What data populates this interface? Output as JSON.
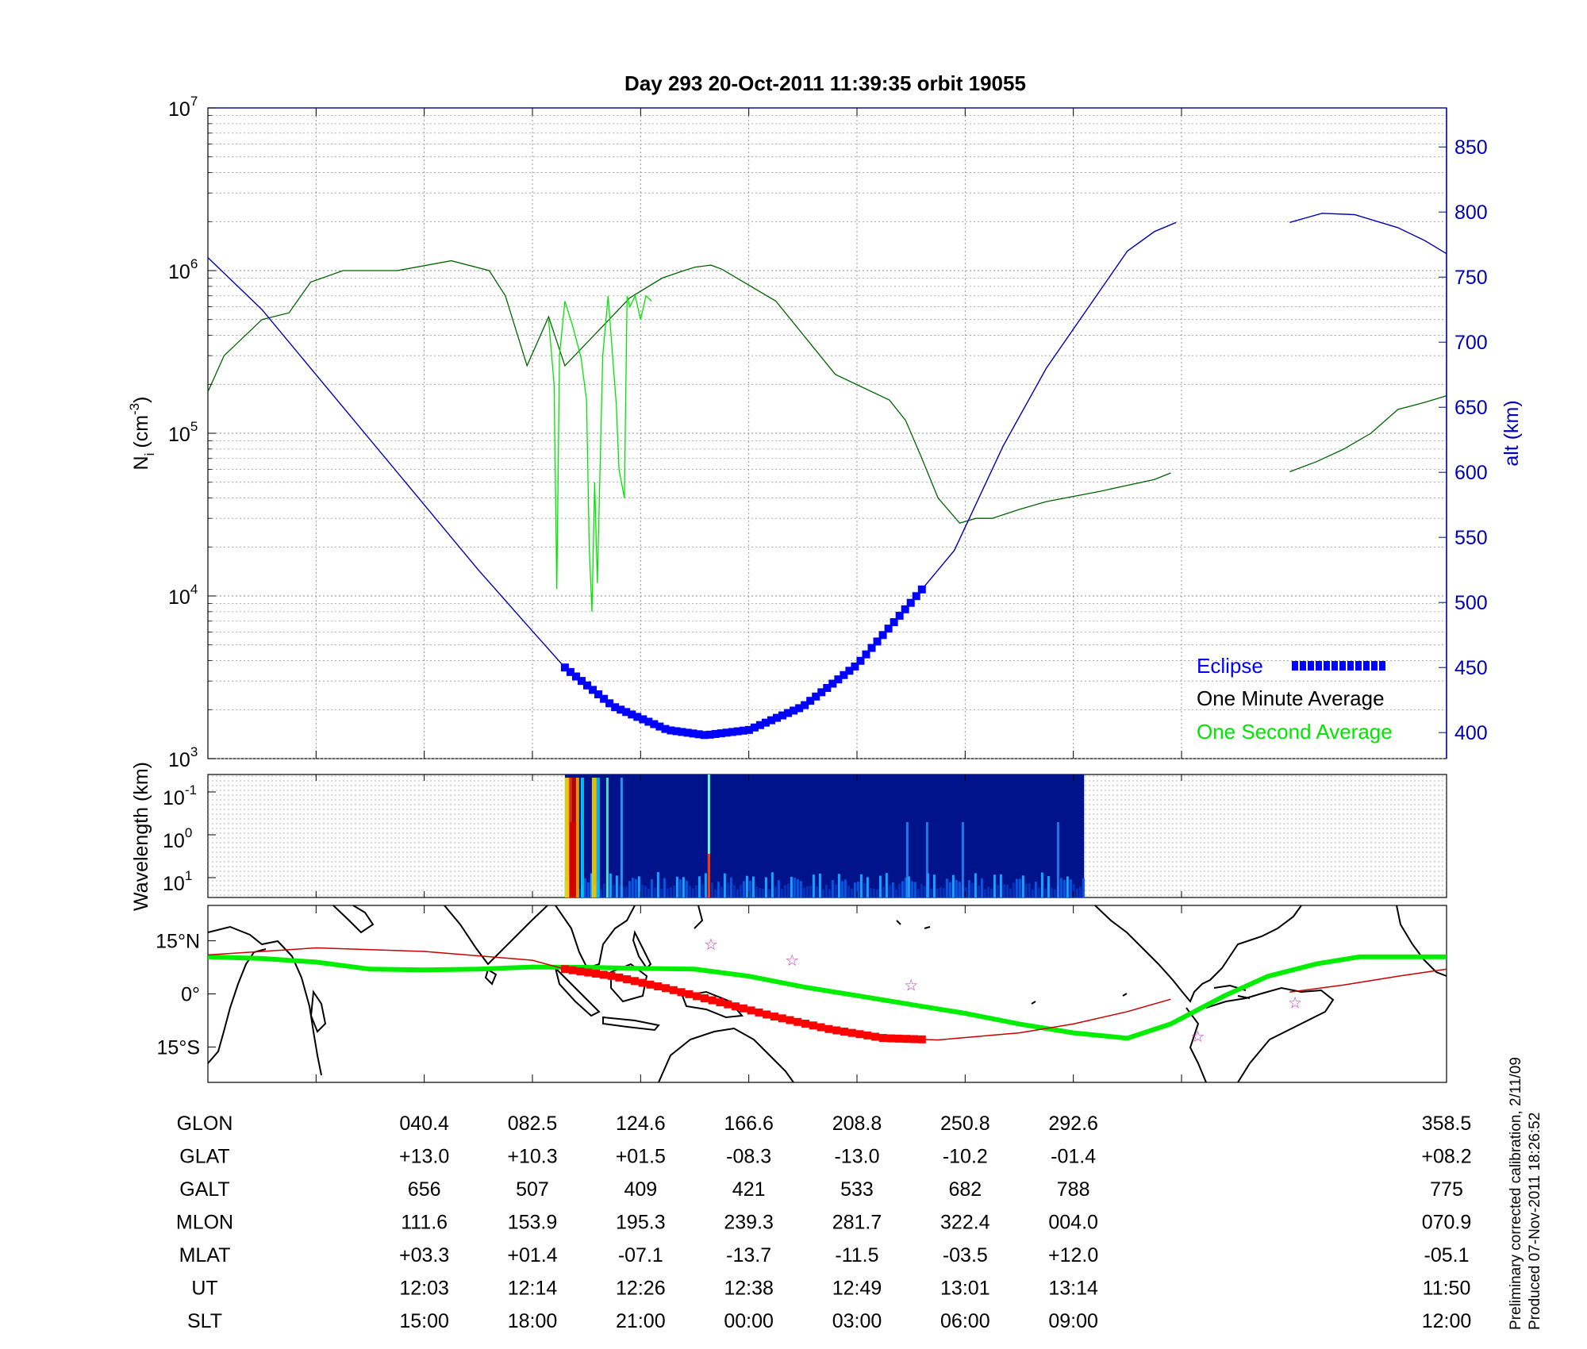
{
  "title": "Day 293  20-Oct-2011 11:39:35   orbit 19055",
  "footer": {
    "line1": "Preliminary corrected calibration, 2/11/09",
    "line2": "Produced 07-Nov-2011 18:26:52"
  },
  "colors": {
    "green_avg": "#00e600",
    "black_avg": "#006400",
    "altitude": "#0000b4",
    "eclipse": "#0000ff",
    "track": "#00ee00",
    "track_eclipse": "#ff0000",
    "track_line": "#c80000",
    "star": "#cc33cc"
  },
  "chart_data": [
    {
      "type": "line",
      "panel": "density",
      "ylabel": "N_i (cm^-3)",
      "ylabel_main": "N",
      "ylabel_sub": "i",
      "ylabel_unit": "(cm",
      "ylabel_exp": "-3",
      "ylabel_close": ")",
      "yscale": "log",
      "ylim": [
        1000,
        10000000
      ],
      "yticks": [
        {
          "base": "10",
          "exp": "3",
          "value": 1000
        },
        {
          "base": "10",
          "exp": "4",
          "value": 10000
        },
        {
          "base": "10",
          "exp": "5",
          "value": 100000
        },
        {
          "base": "10",
          "exp": "6",
          "value": 1000000
        },
        {
          "base": "10",
          "exp": "7",
          "value": 10000000
        }
      ],
      "y2label": "alt (km)",
      "y2lim": [
        380,
        880
      ],
      "y2ticks": [
        "400",
        "450",
        "500",
        "550",
        "600",
        "650",
        "700",
        "750",
        "800",
        "850"
      ],
      "grid": true,
      "legend_position": "bottom-right",
      "legend": [
        {
          "label": "Eclipse",
          "color": "#0000ff"
        },
        {
          "label": "One Minute Average",
          "color": "#000000"
        },
        {
          "label": "One Second Average",
          "color": "#00e600"
        }
      ],
      "series": [
        {
          "name": "One Minute Average",
          "color": "#006400",
          "segments": [
            [
              [
                0,
                180000
              ],
              [
                0.3,
                300000
              ],
              [
                1.0,
                500000
              ],
              [
                1.5,
                550000
              ],
              [
                1.9,
                850000
              ],
              [
                2.5,
                1000000
              ],
              [
                3.0,
                1000000
              ],
              [
                3.5,
                1000000
              ],
              [
                4.5,
                1150000
              ],
              [
                5.2,
                1000000
              ],
              [
                5.5,
                700000
              ],
              [
                5.9,
                260000
              ],
              [
                6.3,
                520000
              ],
              [
                6.6,
                260000
              ],
              [
                7.2,
                420000
              ],
              [
                7.8,
                680000
              ],
              [
                8.4,
                900000
              ],
              [
                8.8,
                1000000
              ],
              [
                9.0,
                1050000
              ],
              [
                9.3,
                1080000
              ],
              [
                9.5,
                1020000
              ],
              [
                10.5,
                650000
              ],
              [
                11.6,
                230000
              ],
              [
                12.6,
                160000
              ],
              [
                12.9,
                120000
              ],
              [
                13.2,
                70000
              ],
              [
                13.5,
                40000
              ],
              [
                13.9,
                28000
              ],
              [
                14.2,
                30000
              ],
              [
                14.5,
                30000
              ],
              [
                15.0,
                34000
              ],
              [
                15.5,
                38000
              ],
              [
                16.5,
                44000
              ],
              [
                17.5,
                52000
              ],
              [
                17.8,
                57000
              ]
            ],
            [
              [
                20.0,
                58000
              ],
              [
                20.5,
                67000
              ],
              [
                21.0,
                80000
              ],
              [
                21.5,
                100000
              ],
              [
                22.0,
                140000
              ],
              [
                22.5,
                155000
              ],
              [
                22.9,
                170000
              ]
            ]
          ]
        },
        {
          "name": "One Second Average",
          "color": "#00e600",
          "segments": [
            [
              [
                6.3,
                500000
              ],
              [
                6.4,
                200000
              ],
              [
                6.45,
                11000
              ],
              [
                6.5,
                300000
              ],
              [
                6.6,
                650000
              ],
              [
                6.75,
                450000
              ],
              [
                6.9,
                290000
              ],
              [
                7.0,
                160000
              ],
              [
                7.05,
                20000
              ],
              [
                7.1,
                8000
              ],
              [
                7.15,
                50000
              ],
              [
                7.2,
                12000
              ],
              [
                7.3,
                300000
              ],
              [
                7.4,
                700000
              ],
              [
                7.5,
                250000
              ],
              [
                7.55,
                150000
              ],
              [
                7.6,
                60000
              ],
              [
                7.7,
                40000
              ],
              [
                7.75,
                700000
              ],
              [
                7.8,
                600000
              ],
              [
                7.9,
                700000
              ],
              [
                8.0,
                500000
              ],
              [
                8.1,
                700000
              ],
              [
                8.2,
                650000
              ]
            ]
          ]
        },
        {
          "name": "",
          "axis": "y2",
          "color": "#0000b4",
          "segments": [
            [
              [
                0,
                765
              ],
              [
                1,
                725
              ],
              [
                2,
                675
              ],
              [
                3,
                625
              ],
              [
                4,
                575
              ],
              [
                5,
                525
              ],
              [
                6,
                478
              ],
              [
                6.6,
                450
              ],
              [
                7.5,
                420
              ],
              [
                8.5,
                402
              ],
              [
                9.2,
                398
              ],
              [
                10,
                402
              ],
              [
                11,
                420
              ],
              [
                12,
                452
              ],
              [
                13,
                500
              ],
              [
                13.8,
                540
              ],
              [
                14.7,
                620
              ],
              [
                15.5,
                680
              ],
              [
                16.5,
                740
              ],
              [
                17.0,
                770
              ],
              [
                17.5,
                785
              ],
              [
                17.9,
                792
              ]
            ],
            [
              [
                20.0,
                792
              ],
              [
                20.6,
                799
              ],
              [
                21.2,
                798
              ],
              [
                22.0,
                788
              ],
              [
                22.5,
                778
              ],
              [
                22.9,
                768
              ]
            ]
          ]
        },
        {
          "name": "Eclipse",
          "axis": "y2",
          "color": "#0000ff",
          "range": [
            6.6,
            13.2
          ]
        }
      ]
    },
    {
      "type": "heatmap",
      "panel": "spectrogram",
      "ylabel": "Wavelength (km)",
      "yticks": [
        {
          "base": "10",
          "exp": "-1"
        },
        {
          "base": "10",
          "exp": "0"
        },
        {
          "base": "10",
          "exp": "1"
        }
      ],
      "x_range": [
        6.6,
        16.2
      ],
      "colormap": "jet"
    },
    {
      "type": "line",
      "panel": "map",
      "yticks": [
        "15°N",
        "0°",
        "15°S"
      ],
      "ylim": [
        -25,
        25
      ],
      "series": [
        {
          "name": "",
          "color": "#00ee00",
          "points": [
            [
              0,
              10.5
            ],
            [
              1,
              10.0
            ],
            [
              2,
              9.0
            ],
            [
              3,
              7.0
            ],
            [
              4,
              6.8
            ],
            [
              5,
              7.0
            ],
            [
              6,
              7.6
            ],
            [
              7,
              7.5
            ],
            [
              8,
              7.2
            ],
            [
              9,
              7.0
            ],
            [
              10,
              5.0
            ],
            [
              11,
              2.0
            ],
            [
              12,
              -0.5
            ],
            [
              13,
              -3.0
            ],
            [
              14,
              -5.5
            ],
            [
              15,
              -8.5
            ],
            [
              16,
              -11.0
            ],
            [
              17,
              -12.5
            ],
            [
              17.8,
              -8.5
            ],
            [
              18.8,
              -0.5
            ],
            [
              19.6,
              5.0
            ],
            [
              20.5,
              8.5
            ],
            [
              21.3,
              10.5
            ],
            [
              22.9,
              10.5
            ]
          ]
        },
        {
          "name": "",
          "color": "#c80000",
          "points": [
            [
              0,
              11.0
            ],
            [
              2,
              13.0
            ],
            [
              4,
              12.0
            ],
            [
              6,
              9.5
            ],
            [
              6.6,
              7.0
            ],
            [
              7.5,
              5.0
            ],
            [
              8.5,
              1.5
            ],
            [
              9.5,
              -2.5
            ],
            [
              10.5,
              -6.5
            ],
            [
              11.5,
              -10.0
            ],
            [
              12.5,
              -12.5
            ],
            [
              13.5,
              -13.0
            ],
            [
              15,
              -11.0
            ],
            [
              16,
              -8.5
            ],
            [
              17,
              -5.0
            ],
            [
              17.8,
              -1.5
            ]
          ]
        },
        {
          "name": "",
          "color": "#c80000",
          "points": [
            [
              20.0,
              0.5
            ],
            [
              21,
              2.5
            ],
            [
              22,
              5.0
            ],
            [
              22.9,
              7.0
            ]
          ]
        }
      ],
      "eclipse_range": [
        6.6,
        13.2
      ],
      "stars": [
        [
          9.3,
          14.0
        ],
        [
          10.8,
          9.5
        ],
        [
          13.0,
          2.5
        ],
        [
          18.3,
          -12.0
        ],
        [
          20.1,
          -2.5
        ]
      ]
    }
  ],
  "table": {
    "row_labels": [
      "GLON",
      "GLAT",
      "GALT",
      "MLON",
      "MLAT",
      "UT",
      "SLT"
    ],
    "columns": [
      [
        "040.4",
        "+13.0",
        "656",
        "111.6",
        "+03.3",
        "12:03",
        "15:00"
      ],
      [
        "082.5",
        "+10.3",
        "507",
        "153.9",
        "+01.4",
        "12:14",
        "18:00"
      ],
      [
        "124.6",
        "+01.5",
        "409",
        "195.3",
        "-07.1",
        "12:26",
        "21:00"
      ],
      [
        "166.6",
        "-08.3",
        "421",
        "239.3",
        "-13.7",
        "12:38",
        "00:00"
      ],
      [
        "208.8",
        "-13.0",
        "533",
        "281.7",
        "-11.5",
        "12:49",
        "03:00"
      ],
      [
        "250.8",
        "-10.2",
        "682",
        "322.4",
        "-03.5",
        "13:01",
        "06:00"
      ],
      [
        "292.6",
        "-01.4",
        "788",
        "004.0",
        "+12.0",
        "13:14",
        "09:00"
      ],
      [
        "358.5",
        "+08.2",
        "775",
        "070.9",
        "-05.1",
        "11:50",
        "12:00"
      ]
    ]
  }
}
